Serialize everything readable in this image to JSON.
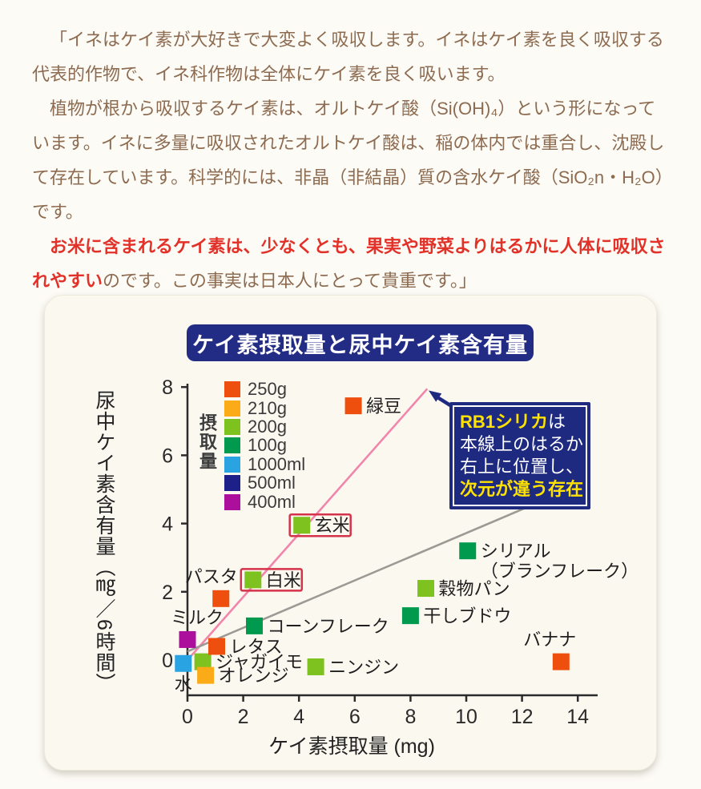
{
  "colors": {
    "page_bg": "#fdfbf6",
    "card_bg": "#fbf8f0",
    "accent_navy": "#232c85",
    "annotation_bg": "#1e2a80",
    "annotation_yellow": "#ffe200",
    "text_brown": "#8d6b50",
    "text_red": "#e23128",
    "highlight_box": "#d4334a",
    "trend_pink": "#f285ab",
    "trend_gray": "#9c9a95"
  },
  "intro": {
    "paragraphs": [
      {
        "segments": [
          {
            "text": "「イネはケイ素が大好きで大変よく吸収します。イネはケイ素を良く吸収する代表的作物で、イネ科作物は全体にケイ素を良く吸います。",
            "color": "brown"
          }
        ]
      },
      {
        "segments": [
          {
            "text": "植物が根から吸収するケイ素は、オルトケイ酸（Si(OH)₄）という形になっています。イネに多量に吸収されたオルトケイ酸は、稲の体内では重合し、沈殿して存在しています。科学的には、非晶（非結晶）質の含水ケイ酸（SiO₂n・H₂O）です。",
            "color": "brown"
          }
        ]
      },
      {
        "segments": [
          {
            "text": "お米に含まれるケイ素は、少なくとも、果実や野菜よりはるかに人体に吸収されやすい",
            "color": "red"
          },
          {
            "text": "のです。この事実は日本人にとって貴重です。」",
            "color": "brown"
          }
        ]
      }
    ]
  },
  "annotation": {
    "lines": [
      [
        {
          "text": "RB1シリカ",
          "color": "yellow"
        },
        {
          "text": "は",
          "color": "white"
        }
      ],
      [
        {
          "text": "本線上のはるか",
          "color": "white"
        }
      ],
      [
        {
          "text": "右上に位置し、",
          "color": "white"
        }
      ],
      [
        {
          "text": "次元が違う存在",
          "color": "yellow"
        }
      ]
    ]
  },
  "chart_data": {
    "type": "scatter",
    "title": "ケイ素摂取量と尿中ケイ素含有量",
    "xlabel": "ケイ素摂取量 (mg)",
    "ylabel": "尿中ケイ素含有量（㎎／6時間）",
    "xlim": [
      0,
      14.7
    ],
    "ylim": [
      -1,
      8.1
    ],
    "xticks": [
      0,
      2,
      4,
      6,
      8,
      10,
      12,
      14
    ],
    "yticks": [
      0,
      2,
      4,
      6,
      8
    ],
    "grid": false,
    "legend": {
      "title": "摂取量",
      "position": "upper-left",
      "items": [
        {
          "label": "250g",
          "color": "#ee4f0f"
        },
        {
          "label": "210g",
          "color": "#fbab18"
        },
        {
          "label": "200g",
          "color": "#7dc21e"
        },
        {
          "label": "100g",
          "color": "#009a4e"
        },
        {
          "label": "1000ml",
          "color": "#29a3e2"
        },
        {
          "label": "500ml",
          "color": "#1d2088"
        },
        {
          "label": "400ml",
          "color": "#ad0f9d"
        }
      ]
    },
    "points": [
      {
        "label": "水",
        "x": -0.15,
        "y": -0.1,
        "category": "1000ml",
        "color": "#29a3e2",
        "label_pos": "below"
      },
      {
        "label": "ミルク",
        "x": 0.0,
        "y": 0.6,
        "category": "400ml",
        "color": "#ad0f9d",
        "label_pos": "above",
        "dx": 12
      },
      {
        "label": "ジャガイモ",
        "x": 0.55,
        "y": -0.05,
        "category": "200g",
        "color": "#7dc21e",
        "label_pos": "right"
      },
      {
        "label": "オレンジ",
        "x": 0.65,
        "y": -0.45,
        "category": "210g",
        "color": "#fbab18",
        "label_pos": "right"
      },
      {
        "label": "レタス",
        "x": 1.05,
        "y": 0.4,
        "category": "250g",
        "color": "#ee4f0f",
        "label_pos": "right"
      },
      {
        "label": "パスタ",
        "x": 1.2,
        "y": 1.8,
        "category": "250g",
        "color": "#ee4f0f",
        "label_pos": "above",
        "dx": -12
      },
      {
        "label": "白米",
        "x": 2.35,
        "y": 2.35,
        "category": "200g",
        "color": "#7dc21e",
        "label_pos": "right",
        "boxed": true
      },
      {
        "label": "コーンフレーク",
        "x": 2.4,
        "y": 1.0,
        "category": "100g",
        "color": "#009a4e",
        "label_pos": "right"
      },
      {
        "label": "玄米",
        "x": 4.1,
        "y": 3.95,
        "category": "200g",
        "color": "#7dc21e",
        "label_pos": "right",
        "boxed": true
      },
      {
        "label": "ニンジン",
        "x": 4.6,
        "y": -0.2,
        "category": "200g",
        "color": "#7dc21e",
        "label_pos": "right"
      },
      {
        "label": "緑豆",
        "x": 5.95,
        "y": 7.45,
        "category": "250g",
        "color": "#ee4f0f",
        "label_pos": "right"
      },
      {
        "label": "干しブドウ",
        "x": 8.0,
        "y": 1.3,
        "category": "100g",
        "color": "#009a4e",
        "label_pos": "right"
      },
      {
        "label": "穀物パン",
        "x": 8.55,
        "y": 2.1,
        "category": "200g",
        "color": "#7dc21e",
        "label_pos": "right"
      },
      {
        "label": "シリアル",
        "label2": "（ブランフレーク）",
        "x": 10.05,
        "y": 3.2,
        "category": "100g",
        "color": "#009a4e",
        "label_pos": "right"
      },
      {
        "label": "バナナ",
        "x": 13.4,
        "y": -0.05,
        "category": "250g",
        "color": "#ee4f0f",
        "label_pos": "above",
        "dx": -14
      }
    ],
    "lines": [
      {
        "name": "rice-trend",
        "color": "#f285ab",
        "from": [
          0,
          0
        ],
        "to": [
          8.6,
          7.95
        ]
      },
      {
        "name": "food-trend",
        "color": "#9c9a95",
        "from": [
          0,
          0.25
        ],
        "to": [
          12.1,
          4.45
        ]
      }
    ]
  }
}
